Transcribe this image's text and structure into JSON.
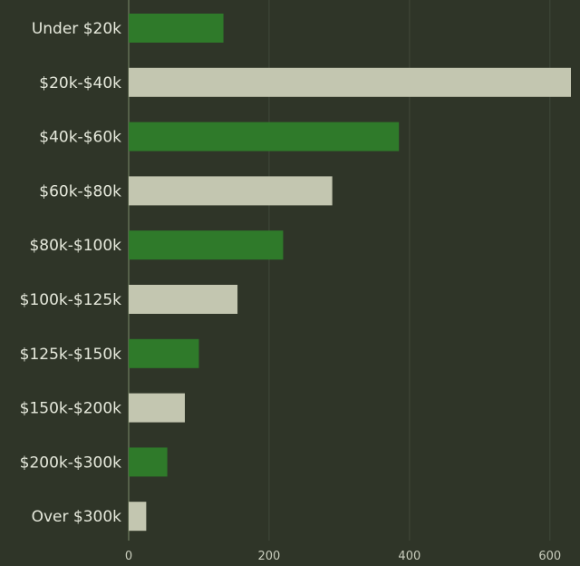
{
  "chart_data": {
    "type": "bar",
    "orientation": "horizontal",
    "categories": [
      "Under $20k",
      "$20k-$40k",
      "$40k-$60k",
      "$60k-$80k",
      "$80k-$100k",
      "$100k-$125k",
      "$125k-$150k",
      "$150k-$200k",
      "$200k-$300k",
      "Over $300k"
    ],
    "values": [
      135,
      630,
      385,
      290,
      220,
      155,
      100,
      80,
      55,
      25
    ],
    "xlim": [
      0,
      630
    ],
    "xticks": [
      0,
      200,
      400,
      600
    ],
    "xtick_labels": [
      "0",
      "200",
      "400",
      "600"
    ],
    "grid": "vertical",
    "title": "",
    "xlabel": "",
    "ylabel": "",
    "colors": {
      "background": "#2f3528",
      "bar_even": "#2f7a2a",
      "bar_odd": "#c3c6b0",
      "grid": "#3b4234",
      "axis": "#556049"
    }
  }
}
